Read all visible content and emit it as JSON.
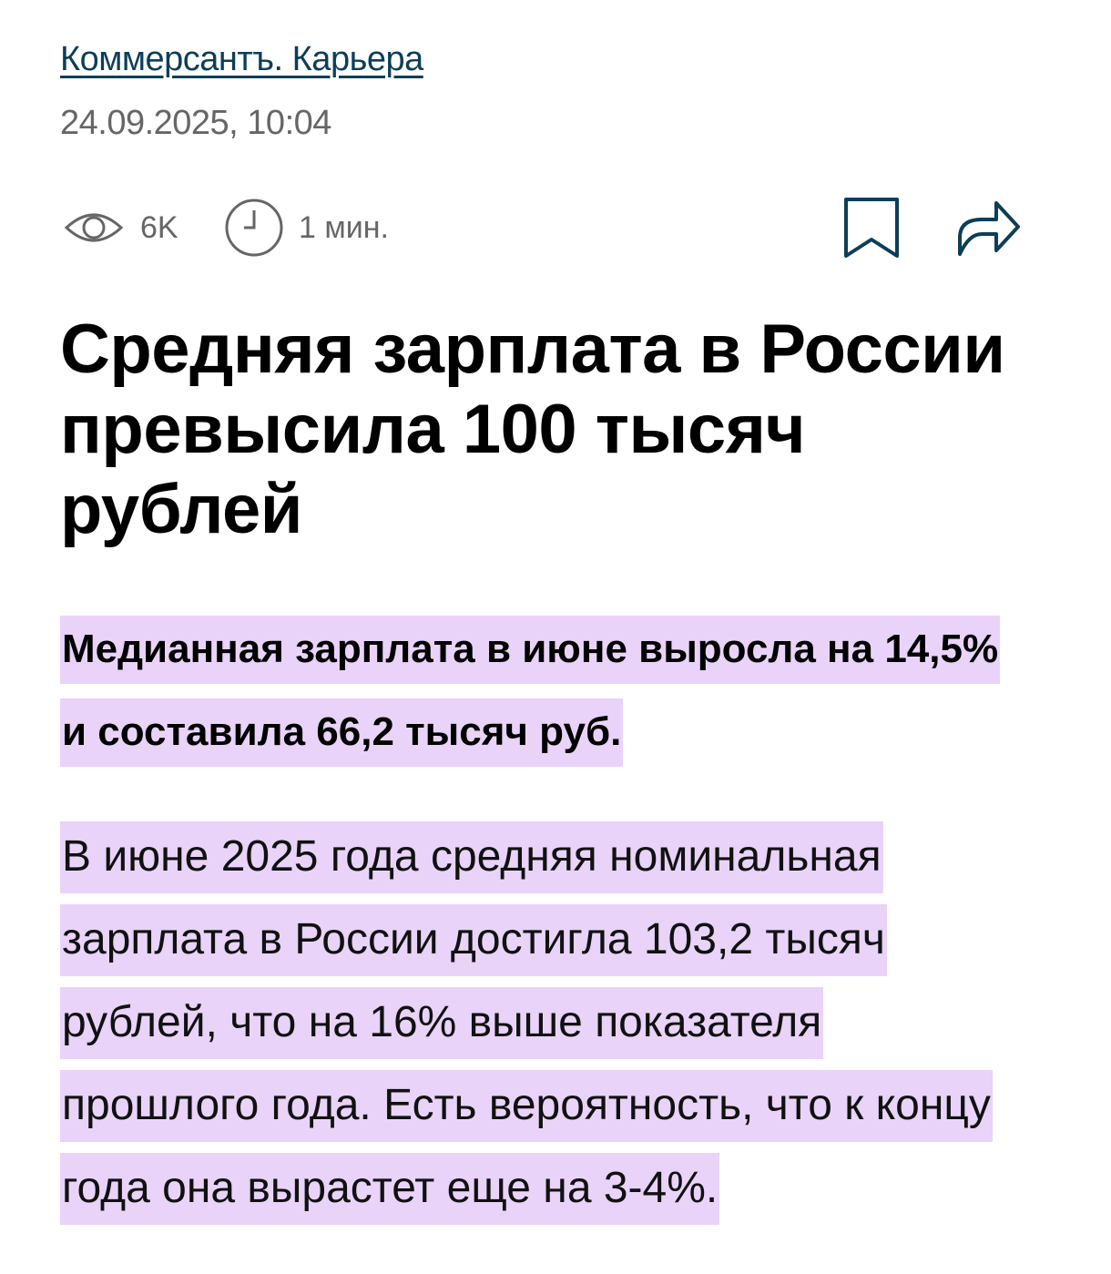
{
  "header": {
    "source_link": "Коммерсантъ. Карьера",
    "datetime": "24.09.2025, 10:04"
  },
  "meta": {
    "views": "6K",
    "read_time": "1 мин.",
    "icons": [
      "eye-icon",
      "clock-icon",
      "bookmark-icon",
      "share-icon"
    ]
  },
  "article": {
    "title": "Средняя зарплата в России превысила 100 тысяч рублей",
    "lead": "Медианная зарплата в июне выросла на 14,5% и составила 66,2 тысяч руб.",
    "body": "В июне 2025 года средняя номинальная зарплата в России достигла 103,2 тысяч рублей, что на 16% выше показателя прошлого года. Есть вероятность, что к концу года она вырастет еще на 3-4%."
  },
  "colors": {
    "link": "#0d3e58",
    "highlight": "#e9d3f8",
    "muted": "#666666"
  }
}
